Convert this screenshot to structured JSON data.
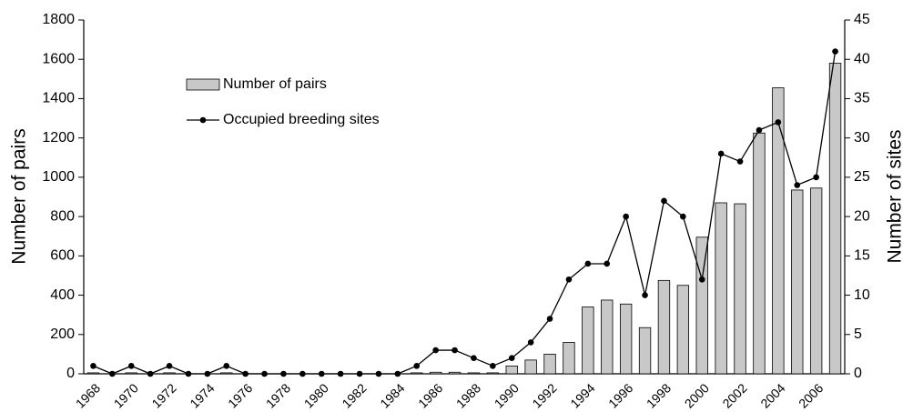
{
  "chart_data": {
    "type": "bar",
    "ylabel": "Number of pairs",
    "y2label": "Number of sites",
    "categories": [
      "1968",
      null,
      "1970",
      null,
      "1972",
      null,
      "1974",
      null,
      "1976",
      null,
      "1978",
      null,
      "1980",
      null,
      "1982",
      null,
      "1984",
      null,
      "1986",
      null,
      "1988",
      null,
      "1990",
      null,
      "1992",
      null,
      "1994",
      null,
      "1996",
      null,
      "1998",
      null,
      "2000",
      null,
      "2002",
      null,
      "2004",
      null,
      "2006",
      null
    ],
    "series": [
      {
        "name": "Number of pairs",
        "type": "bar",
        "color": "#c8c8c8",
        "values": [
          5,
          0,
          5,
          0,
          5,
          0,
          0,
          5,
          0,
          0,
          0,
          0,
          0,
          0,
          0,
          0,
          0,
          5,
          8,
          8,
          5,
          5,
          40,
          70,
          100,
          160,
          340,
          375,
          355,
          235,
          475,
          450,
          695,
          870,
          865,
          1225,
          1455,
          935,
          945,
          1580
        ]
      },
      {
        "name": "Occupied breeding sites",
        "type": "line",
        "axis": "y2",
        "color": "#000000",
        "values": [
          1,
          0,
          1,
          0,
          1,
          0,
          0,
          1,
          0,
          0,
          0,
          0,
          0,
          0,
          0,
          0,
          0,
          1,
          3,
          3,
          2,
          1,
          2,
          4,
          7,
          12,
          14,
          14,
          20,
          10,
          22,
          20,
          12,
          28,
          27,
          31,
          32,
          24,
          25,
          41
        ]
      }
    ],
    "ylim": [
      0,
      1800
    ],
    "yticks": [
      0,
      200,
      400,
      600,
      800,
      1000,
      1200,
      1400,
      1600,
      1800
    ],
    "y2lim": [
      0,
      45
    ],
    "y2ticks": [
      0,
      5,
      10,
      15,
      20,
      25,
      30,
      35,
      40,
      45
    ],
    "legend": "upper left"
  }
}
